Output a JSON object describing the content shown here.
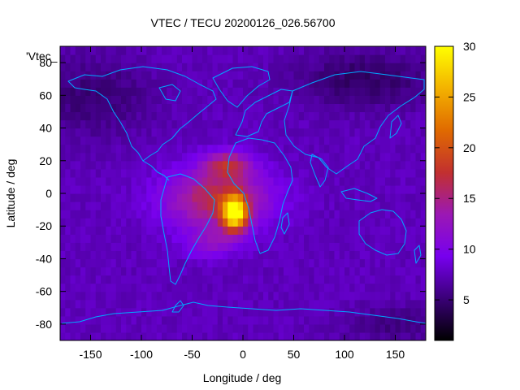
{
  "chart_data": {
    "type": "heatmap",
    "title": "VTEC / TECU 20200126_026.56700",
    "series_label": "'Vtec_",
    "xlabel": "Longitude / deg",
    "ylabel": "Latitude / deg",
    "xlim": [
      -180,
      180
    ],
    "ylim": [
      -90,
      90
    ],
    "x_ticks": [
      -150,
      -100,
      -50,
      0,
      50,
      100,
      150
    ],
    "y_ticks": [
      -80,
      -60,
      -40,
      -20,
      0,
      20,
      40,
      60,
      80
    ],
    "colorbar": {
      "range": [
        1,
        30
      ],
      "ticks": [
        5,
        10,
        15,
        20,
        25,
        30
      ],
      "palette": [
        "#000000",
        "#3a0077",
        "#7700ee",
        "#9b18b4",
        "#c2302f",
        "#e06a00",
        "#f3b200",
        "#ffff00"
      ]
    },
    "field": {
      "background_tecu": 7.5,
      "lon_step_deg": 5,
      "lat_step_deg": 5,
      "features": [
        {
          "kind": "peak",
          "lon": -8,
          "lat": -12,
          "sigma_lon": 12,
          "sigma_lat": 10,
          "tecu": 21
        },
        {
          "kind": "band",
          "lon": -25,
          "lat": -3,
          "sigma_lon": 50,
          "sigma_lat": 18,
          "tecu": 9.5
        },
        {
          "kind": "crest",
          "lon": -15,
          "lat": 18,
          "sigma_lon": 22,
          "sigma_lat": 8,
          "tecu": 8
        },
        {
          "kind": "crest",
          "lon": -30,
          "lat": -30,
          "sigma_lon": 26,
          "sigma_lat": 9,
          "tecu": 4
        },
        {
          "kind": "low",
          "lon": -150,
          "lat": 60,
          "sigma_lon": 60,
          "sigma_lat": 25,
          "tecu": -2.5
        },
        {
          "kind": "low",
          "lon": 120,
          "lat": 70,
          "sigma_lon": 70,
          "sigma_lat": 18,
          "tecu": -3
        },
        {
          "kind": "low",
          "lon": 150,
          "lat": -80,
          "sigma_lon": 50,
          "sigma_lat": 12,
          "tecu": -2
        }
      ]
    },
    "overlay": "continent outlines (cyan)",
    "overlay_color": "#00a8ff"
  }
}
